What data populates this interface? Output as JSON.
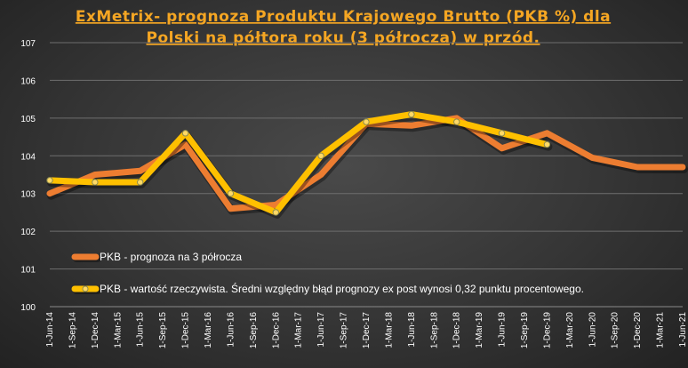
{
  "chart_data": {
    "type": "line",
    "title_lines": [
      "ExMetrix-  prognoza  Produktu  Krajowego  Brutto  (PKB  %)  dla",
      "Polski  na  półtora  roku  (3  półrocza)  w  przód."
    ],
    "xlabel": "",
    "ylabel": "",
    "ylim": [
      100,
      107
    ],
    "yticks": [
      100,
      101,
      102,
      103,
      104,
      105,
      106,
      107
    ],
    "grid": true,
    "categories": [
      "1-Jun-14",
      "1-Sep-14",
      "1-Dec-14",
      "1-Mar-15",
      "1-Jun-15",
      "1-Sep-15",
      "1-Dec-15",
      "1-Mar-16",
      "1-Jun-16",
      "1-Sep-16",
      "1-Dec-16",
      "1-Mar-17",
      "1-Jun-17",
      "1-Sep-17",
      "1-Dec-17",
      "1-Mar-18",
      "1-Jun-18",
      "1-Sep-18",
      "1-Dec-18",
      "1-Mar-19",
      "1-Jun-19",
      "1-Sep-19",
      "1-Dec-19",
      "1-Mar-20",
      "1-Jun-20",
      "1-Sep-20",
      "1-Dec-20",
      "1-Mar-21",
      "1-Jun-21"
    ],
    "series": [
      {
        "name": "PKB - prognoza na 3 półrocza",
        "color": "#ed7d31",
        "x": [
          "1-Jun-14",
          "1-Dec-14",
          "1-Jun-15",
          "1-Dec-15",
          "1-Jun-16",
          "1-Dec-16",
          "1-Jun-17",
          "1-Dec-17",
          "1-Jun-18",
          "1-Dec-18",
          "1-Jun-19",
          "1-Dec-19",
          "1-Jun-20",
          "1-Dec-20",
          "1-Jun-21"
        ],
        "values": [
          103.0,
          103.5,
          103.6,
          104.3,
          102.6,
          102.7,
          103.5,
          104.85,
          104.8,
          105.0,
          104.2,
          104.6,
          103.95,
          103.7,
          103.7
        ]
      },
      {
        "name": "PKB - wartość rzeczywista. Średni względny błąd prognozy ex post wynosi 0,32 punktu procentowego.",
        "color": "#ffc000",
        "x": [
          "1-Jun-14",
          "1-Dec-14",
          "1-Jun-15",
          "1-Dec-15",
          "1-Jun-16",
          "1-Dec-16",
          "1-Jun-17",
          "1-Dec-17",
          "1-Jun-18",
          "1-Dec-18",
          "1-Jun-19",
          "1-Dec-19"
        ],
        "values": [
          103.35,
          103.3,
          103.3,
          104.6,
          103.0,
          102.5,
          104.0,
          104.9,
          105.1,
          104.9,
          104.6,
          104.3
        ]
      }
    ],
    "legend": {
      "placement": "bottom-left",
      "entries": [
        "PKB - prognoza na 3 półrocza",
        "PKB - wartość rzeczywista. Średni względny błąd prognozy ex post wynosi 0,32 punktu procentowego."
      ]
    }
  }
}
